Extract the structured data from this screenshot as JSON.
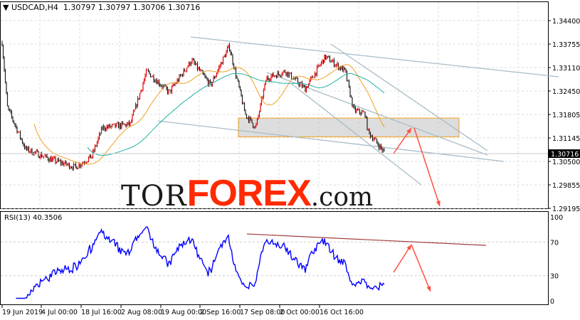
{
  "header": {
    "symbol": "USDCAD,H4",
    "ohlc": "1.30797 1.30797 1.30706 1.30716"
  },
  "indicator": {
    "label": "RSI(13) 40.3506"
  },
  "logo": {
    "part1": "TOR",
    "part2": "FOREX",
    "part3": ".com",
    "mascot_icon": "bull-bear-icon"
  },
  "colors": {
    "bull": "#e00000",
    "bear": "#1e1e1e",
    "ma_fast": "#f0a020",
    "ma_slow": "#20b0a0",
    "rsi": "#0000ff",
    "zone": "#f0a020",
    "arrow": "#ff5040"
  },
  "chart_data": {
    "type": "candlestick",
    "timeframe": "H4",
    "price_ticks": [
      "1.34400",
      "1.33755",
      "1.33110",
      "1.32450",
      "1.31805",
      "1.31145",
      "1.30500",
      "1.29855",
      "1.29195"
    ],
    "current_price": "1.30716",
    "ylim": [
      1.29195,
      1.3505
    ],
    "time_ticks": [
      {
        "label": "19 Jun 2019",
        "date": "2019-06-19"
      },
      {
        "label": "4 Jul 00:00",
        "date": "2019-07-04"
      },
      {
        "label": "18 Jul 16:00",
        "date": "2019-07-18"
      },
      {
        "label": "2 Aug 08:00",
        "date": "2019-08-02"
      },
      {
        "label": "19 Aug 00:00",
        "date": "2019-08-19"
      },
      {
        "label": "2 Sep 16:00",
        "date": "2019-09-02"
      },
      {
        "label": "17 Sep 08:00",
        "date": "2019-09-17"
      },
      {
        "label": "2 Oct 00:00",
        "date": "2019-10-02"
      },
      {
        "label": "16 Oct 16:00",
        "date": "2019-10-16"
      }
    ],
    "close_path": [
      [
        "2019-06-19",
        1.3379
      ],
      [
        "2019-06-21",
        1.32
      ],
      [
        "2019-06-28",
        1.3084
      ],
      [
        "2019-07-08",
        1.3054
      ],
      [
        "2019-07-16",
        1.3034
      ],
      [
        "2019-07-22",
        1.3064
      ],
      [
        "2019-07-26",
        1.3143
      ],
      [
        "2019-08-06",
        1.3153
      ],
      [
        "2019-08-13",
        1.33
      ],
      [
        "2019-08-22",
        1.3241
      ],
      [
        "2019-08-30",
        1.333
      ],
      [
        "2019-09-06",
        1.3261
      ],
      [
        "2019-09-13",
        1.3369
      ],
      [
        "2019-09-19",
        1.3182
      ],
      [
        "2019-09-23",
        1.3143
      ],
      [
        "2019-09-27",
        1.328
      ],
      [
        "2019-10-04",
        1.33
      ],
      [
        "2019-10-11",
        1.3251
      ],
      [
        "2019-10-18",
        1.334
      ],
      [
        "2019-10-25",
        1.33
      ],
      [
        "2019-10-28",
        1.3192
      ],
      [
        "2019-11-01",
        1.3182
      ],
      [
        "2019-11-02",
        1.3133
      ],
      [
        "2019-11-06",
        1.3093
      ],
      [
        "2019-11-08",
        1.3072
      ]
    ],
    "rsi": {
      "period": 13,
      "value": 40.3506,
      "levels": [
        70,
        30
      ],
      "ticks": [
        "100",
        "70",
        "30",
        "0"
      ],
      "ylim": [
        0,
        100
      ]
    },
    "support_zone": [
      1.3118,
      1.317
    ]
  }
}
